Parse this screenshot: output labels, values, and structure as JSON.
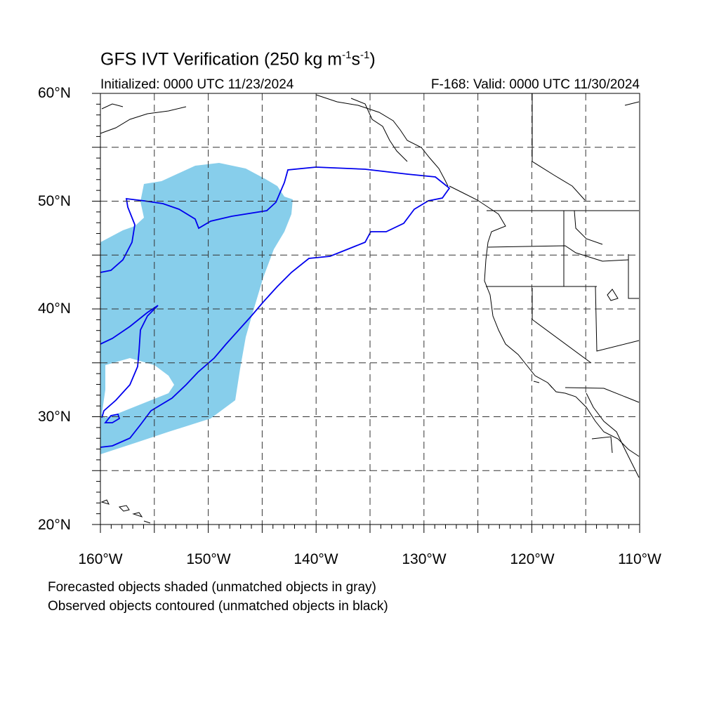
{
  "title": {
    "main": "GFS IVT Verification (250 kg m",
    "exp1": "-1",
    "mid": "s",
    "exp2": "-1",
    "end": ")"
  },
  "subtitle": {
    "initialized": "Initialized: 0000 UTC 11/23/2024",
    "valid": "F-168: Valid: 0000 UTC 11/30/2024"
  },
  "map": {
    "lon_range": [
      -160,
      -110
    ],
    "lat_range": [
      20,
      60
    ],
    "grid": "dashed",
    "lat_labels": [
      "60°N",
      "50°N",
      "40°N",
      "30°N",
      "20°N"
    ],
    "lon_labels": [
      "160°W",
      "150°W",
      "140°W",
      "130°W",
      "120°W",
      "110°W"
    ],
    "forecast_color": "#87ceeb",
    "observed_color": "#0000ee",
    "coast_color": "#000000"
  },
  "legend": {
    "line1": "Forecasted objects shaded (unmatched objects in gray)",
    "line2": "Observed objects contoured (unmatched objects in black)"
  }
}
